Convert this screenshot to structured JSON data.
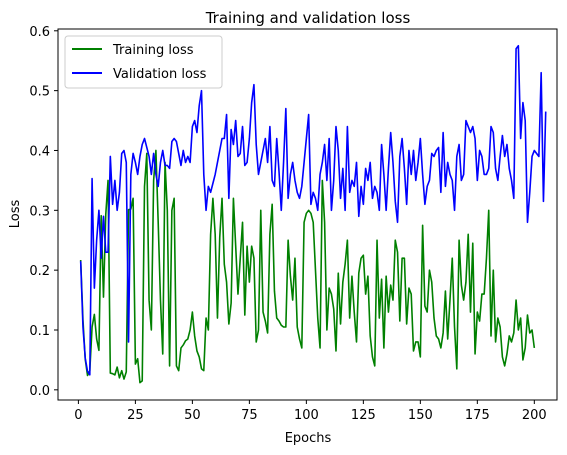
{
  "chart_data": {
    "type": "line",
    "title": "Training and validation loss",
    "xlabel": "Epochs",
    "ylabel": "Loss",
    "xlim": [
      -8.95,
      209.95
    ],
    "ylim": [
      -0.017,
      0.603
    ],
    "xticks": [
      0,
      25,
      50,
      75,
      100,
      125,
      150,
      175,
      200
    ],
    "yticks": [
      0.0,
      0.1,
      0.2,
      0.3,
      0.4,
      0.5,
      0.6
    ],
    "ytick_labels": [
      "0.0",
      "0.1",
      "0.2",
      "0.3",
      "0.4",
      "0.5",
      "0.6"
    ],
    "grid": false,
    "legend_position": "upper-left",
    "series": [
      {
        "name": "Training loss",
        "color": "#008000",
        "x_start": 1,
        "values": [
          0.217,
          0.117,
          0.051,
          0.024,
          0.032,
          0.105,
          0.126,
          0.085,
          0.066,
          0.291,
          0.155,
          0.293,
          0.35,
          0.028,
          0.027,
          0.025,
          0.038,
          0.02,
          0.032,
          0.018,
          0.03,
          0.301,
          0.302,
          0.32,
          0.043,
          0.052,
          0.012,
          0.015,
          0.34,
          0.395,
          0.15,
          0.1,
          0.35,
          0.4,
          0.28,
          0.15,
          0.06,
          0.38,
          0.3,
          0.04,
          0.3,
          0.32,
          0.04,
          0.032,
          0.07,
          0.075,
          0.082,
          0.085,
          0.1,
          0.13,
          0.09,
          0.065,
          0.055,
          0.035,
          0.032,
          0.12,
          0.1,
          0.26,
          0.32,
          0.26,
          0.12,
          0.255,
          0.32,
          0.21,
          0.18,
          0.11,
          0.145,
          0.32,
          0.24,
          0.16,
          0.22,
          0.28,
          0.125,
          0.24,
          0.18,
          0.24,
          0.22,
          0.08,
          0.1,
          0.3,
          0.13,
          0.115,
          0.095,
          0.26,
          0.31,
          0.165,
          0.12,
          0.115,
          0.108,
          0.105,
          0.105,
          0.25,
          0.19,
          0.15,
          0.22,
          0.105,
          0.085,
          0.07,
          0.28,
          0.295,
          0.3,
          0.295,
          0.28,
          0.2,
          0.12,
          0.07,
          0.35,
          0.28,
          0.1,
          0.17,
          0.16,
          0.135,
          0.065,
          0.195,
          0.11,
          0.18,
          0.21,
          0.25,
          0.12,
          0.19,
          0.13,
          0.08,
          0.195,
          0.22,
          0.225,
          0.16,
          0.19,
          0.09,
          0.055,
          0.04,
          0.25,
          0.12,
          0.185,
          0.07,
          0.19,
          0.13,
          0.175,
          0.15,
          0.25,
          0.23,
          0.115,
          0.22,
          0.22,
          0.11,
          0.17,
          0.16,
          0.065,
          0.08,
          0.08,
          0.055,
          0.275,
          0.14,
          0.13,
          0.2,
          0.18,
          0.12,
          0.09,
          0.085,
          0.07,
          0.095,
          0.165,
          0.085,
          0.15,
          0.22,
          0.105,
          0.035,
          0.25,
          0.175,
          0.15,
          0.18,
          0.26,
          0.13,
          0.245,
          0.06,
          0.13,
          0.115,
          0.16,
          0.16,
          0.22,
          0.3,
          0.09,
          0.2,
          0.08,
          0.12,
          0.105,
          0.055,
          0.04,
          0.06,
          0.09,
          0.08,
          0.095,
          0.15,
          0.1,
          0.12,
          0.05,
          0.07,
          0.125,
          0.095,
          0.1,
          0.07
        ]
      },
      {
        "name": "Validation loss",
        "color": "#0000ff",
        "x_start": 1,
        "values": [
          0.215,
          0.105,
          0.053,
          0.031,
          0.025,
          0.353,
          0.17,
          0.25,
          0.3,
          0.22,
          0.29,
          0.23,
          0.23,
          0.39,
          0.31,
          0.35,
          0.3,
          0.33,
          0.395,
          0.4,
          0.38,
          0.08,
          0.36,
          0.395,
          0.38,
          0.36,
          0.39,
          0.41,
          0.42,
          0.405,
          0.39,
          0.36,
          0.395,
          0.36,
          0.34,
          0.38,
          0.4,
          0.375,
          0.375,
          0.37,
          0.415,
          0.42,
          0.415,
          0.395,
          0.375,
          0.4,
          0.38,
          0.39,
          0.38,
          0.44,
          0.45,
          0.43,
          0.475,
          0.5,
          0.36,
          0.3,
          0.34,
          0.33,
          0.345,
          0.36,
          0.38,
          0.4,
          0.42,
          0.42,
          0.46,
          0.32,
          0.435,
          0.41,
          0.45,
          0.39,
          0.395,
          0.44,
          0.375,
          0.38,
          0.42,
          0.48,
          0.51,
          0.41,
          0.36,
          0.38,
          0.4,
          0.42,
          0.38,
          0.44,
          0.35,
          0.34,
          0.42,
          0.365,
          0.3,
          0.38,
          0.47,
          0.32,
          0.36,
          0.38,
          0.35,
          0.33,
          0.32,
          0.34,
          0.38,
          0.42,
          0.46,
          0.31,
          0.33,
          0.32,
          0.3,
          0.36,
          0.38,
          0.41,
          0.35,
          0.42,
          0.3,
          0.35,
          0.44,
          0.4,
          0.32,
          0.37,
          0.3,
          0.44,
          0.33,
          0.35,
          0.34,
          0.38,
          0.29,
          0.34,
          0.31,
          0.37,
          0.35,
          0.38,
          0.32,
          0.34,
          0.33,
          0.3,
          0.41,
          0.36,
          0.3,
          0.37,
          0.43,
          0.38,
          0.315,
          0.28,
          0.39,
          0.42,
          0.37,
          0.31,
          0.4,
          0.36,
          0.4,
          0.35,
          0.38,
          0.42,
          0.36,
          0.31,
          0.34,
          0.35,
          0.395,
          0.39,
          0.4,
          0.405,
          0.33,
          0.43,
          0.34,
          0.38,
          0.36,
          0.35,
          0.3,
          0.39,
          0.41,
          0.35,
          0.36,
          0.45,
          0.44,
          0.43,
          0.44,
          0.42,
          0.35,
          0.4,
          0.39,
          0.36,
          0.36,
          0.37,
          0.44,
          0.43,
          0.37,
          0.35,
          0.39,
          0.425,
          0.39,
          0.41,
          0.37,
          0.35,
          0.32,
          0.57,
          0.575,
          0.42,
          0.48,
          0.45,
          0.28,
          0.33,
          0.39,
          0.4,
          0.395,
          0.39,
          0.53,
          0.315,
          0.465
        ]
      }
    ]
  }
}
